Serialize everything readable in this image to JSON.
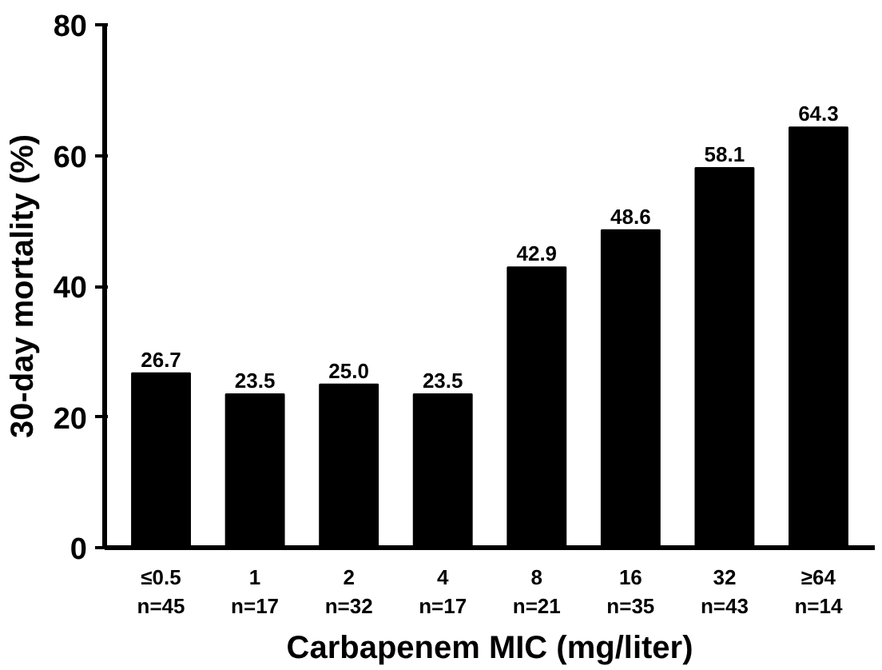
{
  "chart_data": {
    "type": "bar",
    "xlabel": "Carbapenem MIC (mg/liter)",
    "ylabel": "30-day mortality (%)",
    "categories": [
      "≤0.5\nn=45",
      "1\nn=17",
      "2\nn=32",
      "4\nn=17",
      "8\nn=21",
      "16\nn=35",
      "32\nn=43",
      "≥64\nn=14"
    ],
    "values": [
      26.7,
      23.5,
      25.0,
      23.5,
      42.9,
      48.6,
      58.1,
      64.3
    ],
    "value_labels": [
      "26.7",
      "23.5",
      "25.0",
      "23.5",
      "42.9",
      "48.6",
      "58.1",
      "64.3"
    ],
    "color": "#000000",
    "ylim": [
      0,
      80
    ],
    "yticks": [
      0,
      20,
      40,
      60,
      80
    ],
    "grid": false
  }
}
